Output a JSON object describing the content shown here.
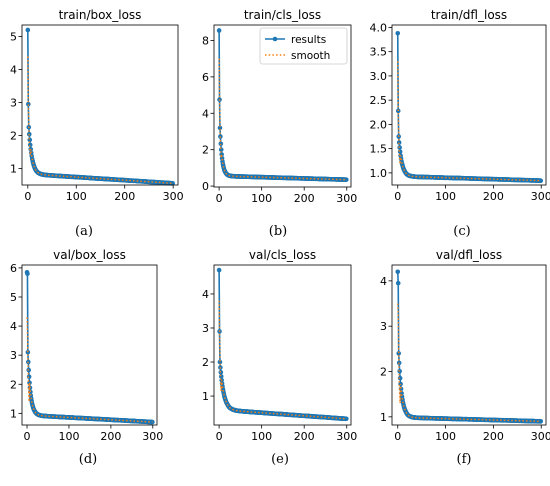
{
  "colors": {
    "results": "#1f77b4",
    "smooth": "#ff7f0e",
    "axis": "#000000"
  },
  "chart_data": [
    {
      "type": "line",
      "title": "train/box_loss",
      "caption": "(a)",
      "xlim": [
        -12,
        310
      ],
      "ylim": [
        0.5,
        5.35
      ],
      "xticks": [
        0,
        100,
        200,
        300
      ],
      "yticks": [
        1,
        2,
        3,
        4,
        5
      ],
      "shape": {
        "y0": 5.2,
        "y1": 2.95,
        "y2": 2.25,
        "floor": 0.55,
        "mid": 0.9,
        "tau": 6,
        "slope": 0.00095,
        "kink": 15
      },
      "series": [
        {
          "name": "results",
          "x": [
            0,
            1,
            2,
            3,
            4,
            5,
            10,
            20,
            30,
            50,
            75,
            100,
            150,
            200,
            250,
            299
          ],
          "y": [
            5.2,
            2.95,
            2.25,
            1.8,
            1.55,
            1.38,
            1.05,
            0.95,
            0.87,
            0.8,
            0.76,
            0.73,
            0.68,
            0.64,
            0.6,
            0.56
          ]
        },
        {
          "name": "smooth",
          "x": [
            0,
            1,
            2,
            3,
            4,
            5,
            10,
            20,
            30,
            50,
            75,
            100,
            150,
            200,
            250,
            299
          ],
          "y": [
            4.4,
            3.0,
            2.3,
            1.85,
            1.6,
            1.4,
            1.06,
            0.95,
            0.87,
            0.8,
            0.76,
            0.73,
            0.68,
            0.64,
            0.6,
            0.56
          ]
        }
      ]
    },
    {
      "type": "line",
      "title": "train/cls_loss",
      "caption": "(b)",
      "xlim": [
        -12,
        310
      ],
      "ylim": [
        -0.05,
        8.85
      ],
      "xticks": [
        0,
        100,
        200,
        300
      ],
      "yticks": [
        0,
        2,
        4,
        6,
        8
      ],
      "legend": {
        "entries": [
          "results",
          "smooth"
        ],
        "placement": "upper-right"
      },
      "shape": {
        "y0": 8.55,
        "y1": 4.75,
        "y2": 3.2,
        "floor": 0.35,
        "mid": 0.55,
        "tau": 5,
        "slope": 0.0007,
        "kink": 18
      },
      "series": [
        {
          "name": "results",
          "x": [
            0,
            1,
            2,
            3,
            4,
            5,
            10,
            20,
            30,
            50,
            75,
            100,
            150,
            200,
            250,
            299
          ],
          "y": [
            8.55,
            4.75,
            3.2,
            2.4,
            1.9,
            1.5,
            0.9,
            0.6,
            0.52,
            0.47,
            0.44,
            0.42,
            0.39,
            0.37,
            0.36,
            0.35
          ]
        },
        {
          "name": "smooth",
          "x": [
            0,
            1,
            2,
            3,
            4,
            5,
            10,
            20,
            30,
            50,
            75,
            100,
            150,
            200,
            250,
            299
          ],
          "y": [
            7.0,
            4.8,
            3.3,
            2.5,
            1.95,
            1.55,
            0.92,
            0.6,
            0.52,
            0.47,
            0.44,
            0.42,
            0.39,
            0.37,
            0.36,
            0.35
          ]
        }
      ]
    },
    {
      "type": "line",
      "title": "train/dfl_loss",
      "caption": "(c)",
      "xlim": [
        -12,
        310
      ],
      "ylim": [
        0.75,
        4.05
      ],
      "xticks": [
        0,
        100,
        200,
        300
      ],
      "yticks": [
        1.0,
        1.5,
        2.0,
        2.5,
        3.0,
        3.5,
        4.0
      ],
      "shape": {
        "y0": 3.88,
        "y1": 2.28,
        "y2": 1.75,
        "floor": 0.84,
        "mid": 0.95,
        "tau": 6,
        "slope": 0.0003,
        "kink": 18
      },
      "series": [
        {
          "name": "results",
          "x": [
            0,
            1,
            2,
            3,
            4,
            5,
            10,
            20,
            30,
            50,
            75,
            100,
            150,
            200,
            250,
            299
          ],
          "y": [
            3.88,
            2.28,
            1.75,
            1.45,
            1.28,
            1.16,
            1.0,
            0.95,
            0.93,
            0.91,
            0.9,
            0.89,
            0.88,
            0.87,
            0.86,
            0.85
          ]
        },
        {
          "name": "smooth",
          "x": [
            0,
            1,
            2,
            3,
            4,
            5,
            10,
            20,
            30,
            50,
            75,
            100,
            150,
            200,
            250,
            299
          ],
          "y": [
            3.3,
            2.3,
            1.78,
            1.48,
            1.3,
            1.18,
            1.0,
            0.95,
            0.93,
            0.91,
            0.9,
            0.89,
            0.88,
            0.87,
            0.86,
            0.85
          ]
        }
      ]
    },
    {
      "type": "line",
      "title": "val/box_loss",
      "caption": "(d)",
      "xlim": [
        -12,
        310
      ],
      "ylim": [
        0.6,
        6.1
      ],
      "xticks": [
        0,
        100,
        200,
        300
      ],
      "yticks": [
        1,
        2,
        3,
        4,
        5,
        6
      ],
      "shape": {
        "y0": 5.85,
        "y1": 5.8,
        "y2": 3.1,
        "floor": 0.7,
        "mid": 0.95,
        "tau": 6,
        "slope": 0.0008,
        "kink": 20
      },
      "series": [
        {
          "name": "results",
          "x": [
            0,
            1,
            2,
            3,
            4,
            5,
            10,
            20,
            30,
            50,
            75,
            100,
            150,
            200,
            250,
            299
          ],
          "y": [
            5.85,
            5.8,
            3.1,
            2.1,
            1.6,
            1.3,
            1.15,
            0.95,
            0.9,
            0.82,
            0.79,
            0.77,
            0.75,
            0.73,
            0.72,
            0.71
          ]
        },
        {
          "name": "smooth",
          "x": [
            0,
            1,
            2,
            3,
            4,
            5,
            10,
            20,
            30,
            50,
            75,
            100,
            150,
            200,
            250,
            299
          ],
          "y": [
            4.3,
            3.8,
            3.0,
            2.2,
            1.7,
            1.4,
            1.15,
            0.95,
            0.9,
            0.82,
            0.79,
            0.77,
            0.75,
            0.73,
            0.72,
            0.71
          ]
        }
      ]
    },
    {
      "type": "line",
      "title": "val/cls_loss",
      "caption": "(e)",
      "xlim": [
        -12,
        310
      ],
      "ylim": [
        0.15,
        4.85
      ],
      "xticks": [
        0,
        100,
        200,
        300
      ],
      "yticks": [
        1,
        2,
        3,
        4
      ],
      "shape": {
        "y0": 4.7,
        "y1": 2.9,
        "y2": 2.0,
        "floor": 0.33,
        "mid": 0.65,
        "tau": 8,
        "slope": 0.0009,
        "kink": 22
      },
      "series": [
        {
          "name": "results",
          "x": [
            0,
            1,
            2,
            3,
            4,
            5,
            10,
            20,
            30,
            50,
            75,
            100,
            150,
            200,
            250,
            299
          ],
          "y": [
            4.7,
            2.9,
            2.0,
            1.6,
            1.3,
            1.1,
            0.85,
            0.65,
            0.58,
            0.52,
            0.48,
            0.45,
            0.41,
            0.38,
            0.36,
            0.34
          ]
        },
        {
          "name": "smooth",
          "x": [
            0,
            1,
            2,
            3,
            4,
            5,
            10,
            20,
            30,
            50,
            75,
            100,
            150,
            200,
            250,
            299
          ],
          "y": [
            3.8,
            2.9,
            2.1,
            1.65,
            1.35,
            1.15,
            0.86,
            0.65,
            0.58,
            0.52,
            0.48,
            0.45,
            0.41,
            0.38,
            0.36,
            0.34
          ]
        }
      ]
    },
    {
      "type": "line",
      "title": "val/dfl_loss",
      "caption": "(f)",
      "xlim": [
        -12,
        310
      ],
      "ylim": [
        0.82,
        4.35
      ],
      "xticks": [
        0,
        100,
        200,
        300
      ],
      "yticks": [
        1,
        2,
        3,
        4
      ],
      "shape": {
        "y0": 4.2,
        "y1": 3.95,
        "y2": 2.4,
        "floor": 0.9,
        "mid": 1.02,
        "tau": 6,
        "slope": 0.0003,
        "kink": 20
      },
      "series": [
        {
          "name": "results",
          "x": [
            0,
            1,
            2,
            3,
            4,
            5,
            10,
            20,
            30,
            50,
            75,
            100,
            150,
            200,
            250,
            299
          ],
          "y": [
            4.2,
            3.95,
            2.4,
            1.75,
            1.45,
            1.28,
            1.12,
            1.02,
            0.98,
            0.95,
            0.94,
            0.93,
            0.92,
            0.91,
            0.9,
            0.9
          ]
        },
        {
          "name": "smooth",
          "x": [
            0,
            1,
            2,
            3,
            4,
            5,
            10,
            20,
            30,
            50,
            75,
            100,
            150,
            200,
            250,
            299
          ],
          "y": [
            3.5,
            3.3,
            2.5,
            1.8,
            1.5,
            1.3,
            1.12,
            1.02,
            0.98,
            0.95,
            0.94,
            0.93,
            0.92,
            0.91,
            0.9,
            0.9
          ]
        }
      ]
    }
  ]
}
